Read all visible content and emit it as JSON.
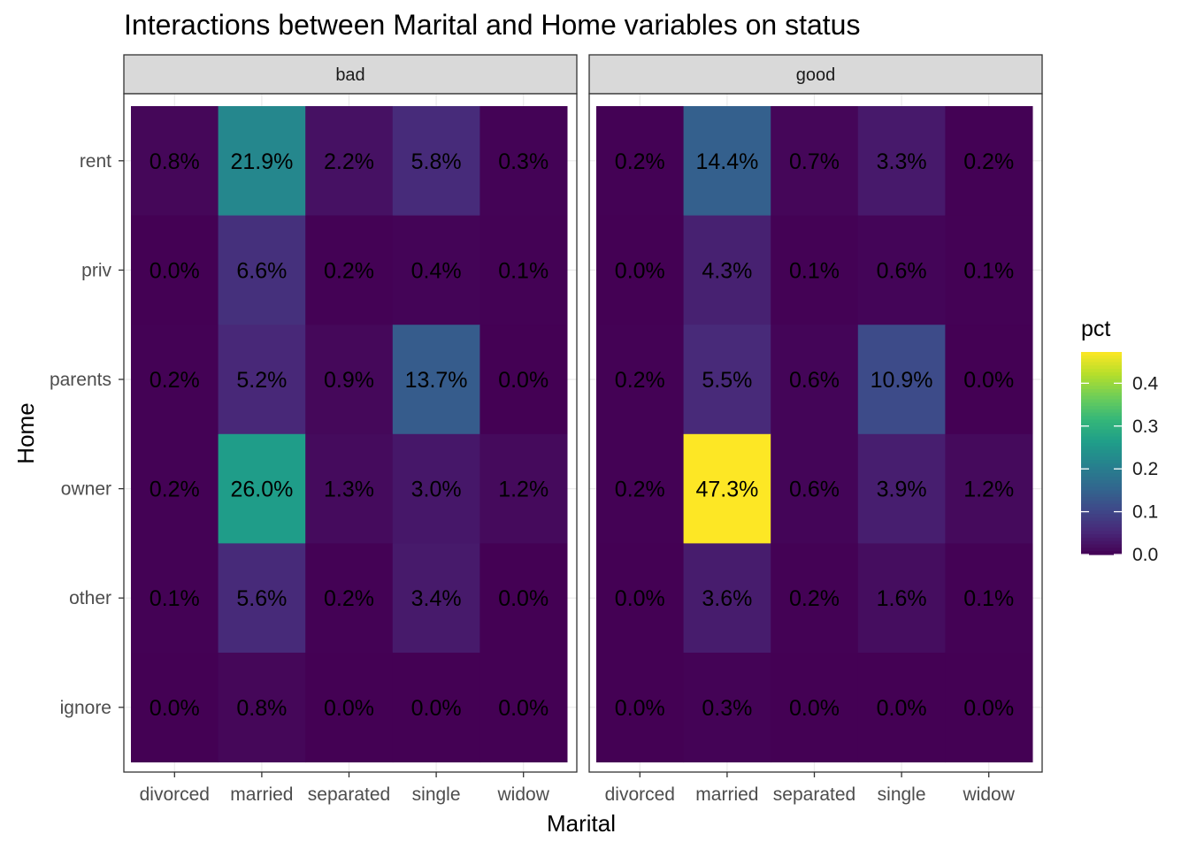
{
  "chart_data": {
    "type": "heatmap",
    "title": "Interactions between Marital and Home variables on status",
    "xlabel": "Marital",
    "ylabel": "Home",
    "x_categories": [
      "divorced",
      "married",
      "separated",
      "single",
      "widow"
    ],
    "y_categories": [
      "rent",
      "priv",
      "parents",
      "owner",
      "other",
      "ignore"
    ],
    "facets": [
      {
        "name": "bad",
        "values": [
          [
            0.008,
            0.219,
            0.022,
            0.058,
            0.003
          ],
          [
            0.0,
            0.066,
            0.002,
            0.004,
            0.001
          ],
          [
            0.002,
            0.052,
            0.009,
            0.137,
            0.0
          ],
          [
            0.002,
            0.26,
            0.013,
            0.03,
            0.012
          ],
          [
            0.001,
            0.056,
            0.002,
            0.034,
            0.0
          ],
          [
            0.0,
            0.008,
            0.0,
            0.0,
            0.0
          ]
        ],
        "labels": [
          [
            "0.8%",
            "21.9%",
            "2.2%",
            "5.8%",
            "0.3%"
          ],
          [
            "0.0%",
            "6.6%",
            "0.2%",
            "0.4%",
            "0.1%"
          ],
          [
            "0.2%",
            "5.2%",
            "0.9%",
            "13.7%",
            "0.0%"
          ],
          [
            "0.2%",
            "26.0%",
            "1.3%",
            "3.0%",
            "1.2%"
          ],
          [
            "0.1%",
            "5.6%",
            "0.2%",
            "3.4%",
            "0.0%"
          ],
          [
            "0.0%",
            "0.8%",
            "0.0%",
            "0.0%",
            "0.0%"
          ]
        ]
      },
      {
        "name": "good",
        "values": [
          [
            0.002,
            0.144,
            0.007,
            0.033,
            0.002
          ],
          [
            0.0,
            0.043,
            0.001,
            0.006,
            0.001
          ],
          [
            0.002,
            0.055,
            0.006,
            0.109,
            0.0
          ],
          [
            0.002,
            0.473,
            0.006,
            0.039,
            0.012
          ],
          [
            0.0,
            0.036,
            0.002,
            0.016,
            0.001
          ],
          [
            0.0,
            0.003,
            0.0,
            0.0,
            0.0
          ]
        ],
        "labels": [
          [
            "0.2%",
            "14.4%",
            "0.7%",
            "3.3%",
            "0.2%"
          ],
          [
            "0.0%",
            "4.3%",
            "0.1%",
            "0.6%",
            "0.1%"
          ],
          [
            "0.2%",
            "5.5%",
            "0.6%",
            "10.9%",
            "0.0%"
          ],
          [
            "0.2%",
            "47.3%",
            "0.6%",
            "3.9%",
            "1.2%"
          ],
          [
            "0.0%",
            "3.6%",
            "0.2%",
            "1.6%",
            "0.1%"
          ],
          [
            "0.0%",
            "0.3%",
            "0.0%",
            "0.0%",
            "0.0%"
          ]
        ]
      }
    ],
    "legend": {
      "title": "pct",
      "range": [
        0,
        0.473
      ],
      "ticks": [
        0.0,
        0.1,
        0.2,
        0.3,
        0.4
      ],
      "tick_labels": [
        "0.0",
        "0.1",
        "0.2",
        "0.3",
        "0.4"
      ],
      "position": "right",
      "colormap": "viridis"
    },
    "grid": true,
    "colors": {
      "panel_border": "#333333",
      "strip_fill": "#d9d9d9",
      "grid_line": "#ebebeb",
      "tick_label": "#4d4d4d"
    }
  }
}
